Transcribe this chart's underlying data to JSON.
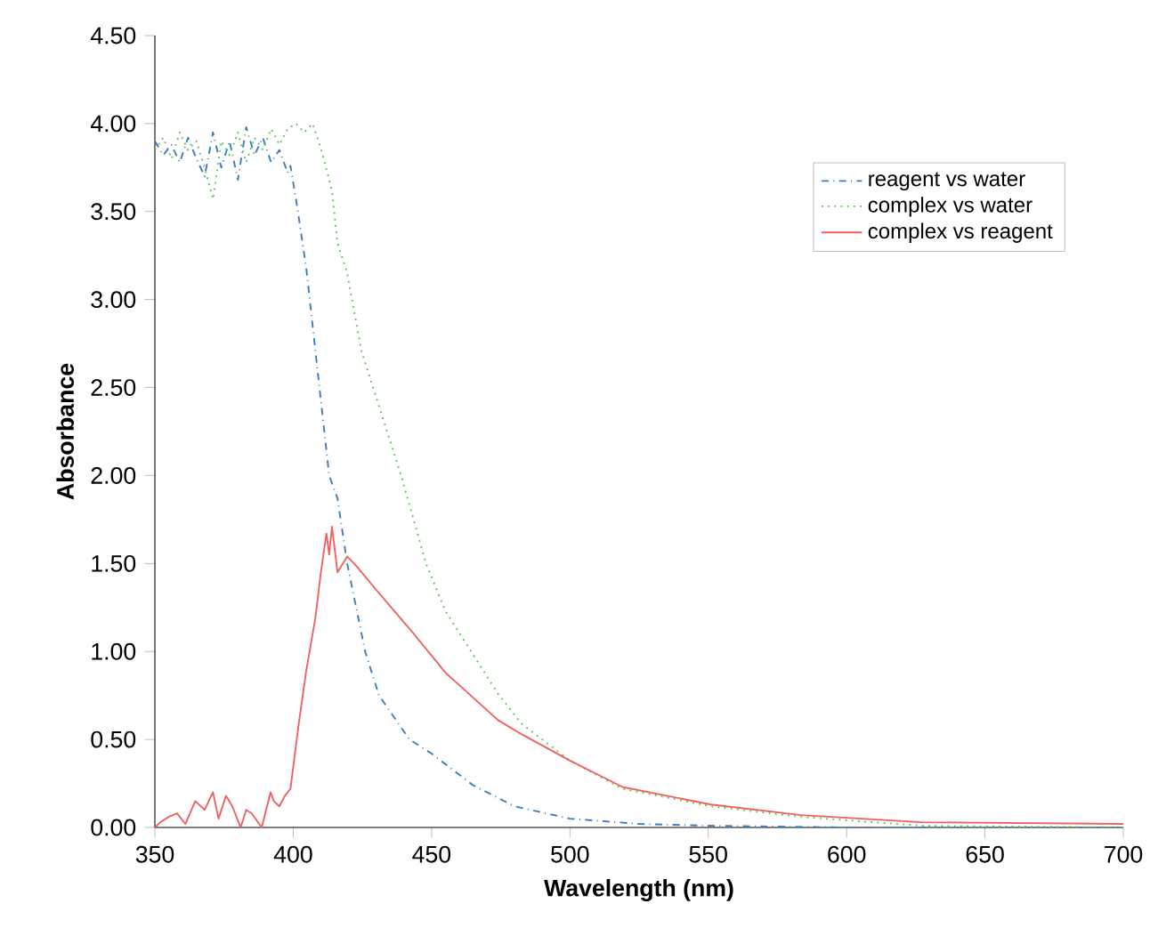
{
  "chart_data": {
    "type": "line",
    "xlabel": "Wavelength (nm)",
    "ylabel": "Absorbance",
    "xlim": [
      350,
      700
    ],
    "ylim": [
      0,
      4.5
    ],
    "xticks": [
      350,
      400,
      450,
      500,
      550,
      600,
      650,
      700
    ],
    "yticks": [
      {
        "value": 0,
        "label": "0.00"
      },
      {
        "value": 0.5,
        "label": "0.50"
      },
      {
        "value": 1,
        "label": "1.00"
      },
      {
        "value": 1.5,
        "label": "1.50"
      },
      {
        "value": 2,
        "label": "2.00"
      },
      {
        "value": 2.5,
        "label": "2.50"
      },
      {
        "value": 3,
        "label": "3.00"
      },
      {
        "value": 3.5,
        "label": "3.50"
      },
      {
        "value": 4,
        "label": "4.00"
      },
      {
        "value": 4.5,
        "label": "4.50"
      }
    ],
    "legend": "top right",
    "grid": false,
    "series": [
      {
        "name": "reagent vs water",
        "color": "#3a7cc0",
        "line_style": "dashdot",
        "x": [
          350,
          353,
          356,
          359,
          362,
          365,
          368,
          371,
          374,
          377,
          380,
          383,
          386,
          389,
          392,
          395,
          398,
          399,
          401.5,
          404.7,
          408,
          413,
          416,
          419.5,
          426,
          431,
          442,
          450,
          465,
          480,
          500,
          525,
          550,
          600,
          650,
          700
        ],
        "values": [
          3.9,
          3.82,
          3.88,
          3.78,
          3.92,
          3.8,
          3.7,
          3.95,
          3.75,
          3.9,
          3.68,
          3.98,
          3.82,
          3.92,
          3.78,
          3.85,
          3.72,
          3.76,
          3.52,
          3.18,
          2.71,
          2.0,
          1.87,
          1.5,
          1.0,
          0.75,
          0.5,
          0.42,
          0.24,
          0.12,
          0.05,
          0.02,
          0.01,
          0.0,
          0.0,
          0.0
        ]
      },
      {
        "name": "complex vs water",
        "color": "#5cc250",
        "line_style": "dotted",
        "x": [
          350,
          353,
          356,
          359,
          362,
          365,
          368,
          371,
          374,
          377,
          380,
          383,
          386,
          389,
          392,
          395,
          398,
          401,
          404,
          407,
          410,
          414,
          416,
          419.5,
          424.6,
          439,
          448,
          455,
          474,
          482.5,
          500,
          519,
          551,
          583.6,
          627,
          700
        ],
        "values": [
          3.85,
          3.92,
          3.8,
          3.95,
          3.85,
          3.9,
          3.75,
          3.57,
          3.9,
          3.82,
          3.95,
          3.78,
          3.92,
          3.85,
          3.97,
          3.88,
          3.97,
          4.0,
          3.95,
          4.0,
          3.86,
          3.62,
          3.32,
          3.15,
          2.71,
          2.0,
          1.5,
          1.23,
          0.76,
          0.59,
          0.38,
          0.22,
          0.12,
          0.06,
          0.01,
          0.0
        ]
      },
      {
        "name": "complex vs reagent",
        "color": "#f06060",
        "line_style": "solid",
        "x": [
          350,
          352,
          355,
          358,
          361,
          364.6,
          368,
          371,
          373,
          375.7,
          378,
          381,
          383,
          385,
          388.6,
          391.8,
          393,
          395,
          397,
          399,
          402,
          404.7,
          408,
          410,
          412,
          413,
          414,
          416,
          419.5,
          422.6,
          430,
          442,
          455,
          474,
          482.5,
          500,
          519,
          551,
          583.6,
          627,
          700
        ],
        "values": [
          0.0,
          0.03,
          0.06,
          0.08,
          0.02,
          0.15,
          0.1,
          0.2,
          0.05,
          0.18,
          0.12,
          0.0,
          0.1,
          0.08,
          0.0,
          0.2,
          0.15,
          0.12,
          0.18,
          0.22,
          0.59,
          0.89,
          1.19,
          1.45,
          1.67,
          1.55,
          1.71,
          1.45,
          1.54,
          1.49,
          1.35,
          1.13,
          0.88,
          0.61,
          0.53,
          0.38,
          0.23,
          0.13,
          0.07,
          0.03,
          0.02
        ]
      }
    ]
  }
}
